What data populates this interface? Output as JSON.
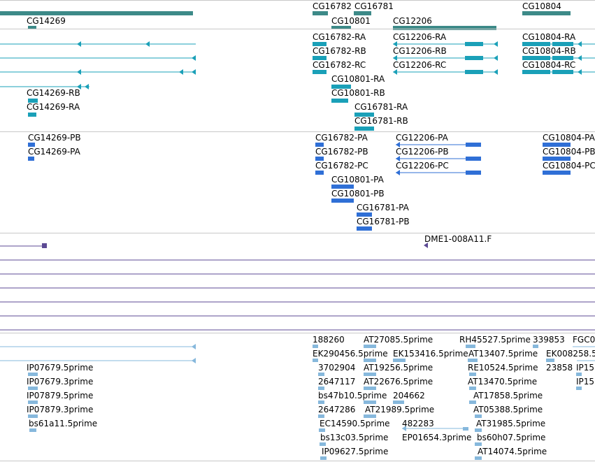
{
  "colors": {
    "gene": "#3d8a88",
    "transcript": "#1aa0b8",
    "protein": "#2f6fd6",
    "clone": "#5c4a94",
    "est": "#86b8dc",
    "separator": "#c8c8c8"
  },
  "tracks": {
    "genes": [
      "CG14269",
      "CG16782",
      "CG16781",
      "CG10801",
      "CG12206",
      "CG10804"
    ],
    "transcripts": [
      "CG16782-RA",
      "CG12206-RA",
      "CG10804-RA",
      "CG16782-RB",
      "CG12206-RB",
      "CG10804-RB",
      "CG16782-RC",
      "CG12206-RC",
      "CG10804-RC",
      "CG10801-RA",
      "CG14269-RB",
      "CG10801-RB",
      "CG14269-RA",
      "CG16781-RA",
      "CG16781-RB"
    ],
    "proteins": [
      "CG14269-PB",
      "CG16782-PA",
      "CG12206-PA",
      "CG10804-PA",
      "CG14269-PA",
      "CG16782-PB",
      "CG12206-PB",
      "CG10804-PB",
      "CG16782-PC",
      "CG12206-PC",
      "CG10804-PC",
      "CG10801-PA",
      "CG10801-PB",
      "CG16781-PA",
      "CG16781-PB"
    ],
    "clones": [
      "DME1-008A11.F"
    ],
    "ests": [
      "188260",
      "AT27085.5prime",
      "RH45527.5prime",
      "339853",
      "FGC0",
      "EK290456.5prime",
      "EK153416.5prime",
      "AT13407.5prime",
      "EK008258.5",
      "IP07679.5prime",
      "3702904",
      "AT19256.5prime",
      "RE10524.5prime",
      "23858",
      "IP15",
      "IP07679.3prime",
      "2647117",
      "AT22676.5prime",
      "AT13470.5prime",
      "IP15",
      "IP07879.5prime",
      "bs47b10.5prime",
      "204662",
      "AT17858.5prime",
      "IP07879.3prime",
      "2647286",
      "AT21989.5prime",
      "AT05388.5prime",
      "bs61a11.5prime",
      "EC14590.5prime",
      "482283",
      "AT31985.5prime",
      "bs13c03.5prime",
      "EP01654.3prime",
      "bs60h07.5prime",
      "IP09627.5prime",
      "AT14074.5prime"
    ]
  }
}
